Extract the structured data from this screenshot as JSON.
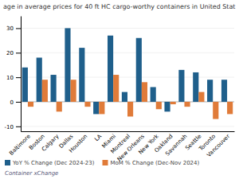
{
  "chart_data": {
    "type": "bar",
    "title": "age in average prices for 40 ft HC cargo-worthy containers in United Stat",
    "categories": [
      "Baltimore",
      "Boston",
      "Calgary",
      "Dallas",
      "Houston",
      "LA",
      "Miami",
      "Montreal",
      "New Orleans",
      "New York",
      "Oakland",
      "Savannah",
      "Seattle",
      "Toronto",
      "Vancouver"
    ],
    "series": [
      {
        "name": "YoY % Change (Dec 2024-23)",
        "color": "#1f5f8b",
        "values": [
          14,
          18,
          11,
          30,
          22,
          -5,
          27,
          4,
          26,
          6,
          -4,
          13,
          12,
          9,
          9
        ]
      },
      {
        "name": "MoM % Change (Dec-Nov 2024)",
        "color": "#e07b39",
        "values": [
          -2,
          9,
          -4,
          9,
          -2,
          -5,
          11,
          -6,
          8,
          -3,
          -1,
          -2,
          4,
          -7,
          -5
        ]
      }
    ],
    "ylim": [
      -12,
      35
    ],
    "yticks": [
      -10,
      0,
      10,
      20,
      30
    ],
    "grid": true,
    "legend": "bottom",
    "annotation": "Container xChange"
  }
}
